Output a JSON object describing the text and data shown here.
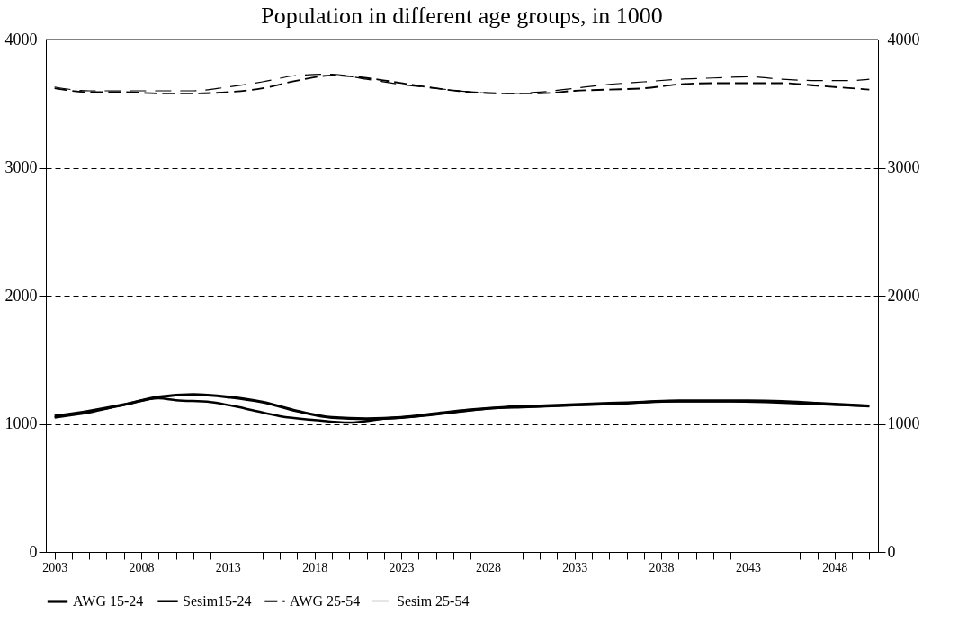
{
  "chart_data": {
    "type": "line",
    "title": "Population in different age groups, in 1000",
    "xlim": [
      2002.5,
      2050.5
    ],
    "xticks": [
      2003,
      {
        "value": 2004,
        "label": null
      },
      {
        "value": 2005,
        "label": null
      },
      {
        "value": 2006,
        "label": null
      },
      {
        "value": 2007,
        "label": null
      },
      2008,
      {
        "value": 2009,
        "label": null
      },
      {
        "value": 2010,
        "label": null
      },
      {
        "value": 2011,
        "label": null
      },
      {
        "value": 2012,
        "label": null
      },
      2013,
      {
        "value": 2014,
        "label": null
      },
      {
        "value": 2015,
        "label": null
      },
      {
        "value": 2016,
        "label": null
      },
      {
        "value": 2017,
        "label": null
      },
      2018,
      {
        "value": 2019,
        "label": null
      },
      {
        "value": 2020,
        "label": null
      },
      {
        "value": 2021,
        "label": null
      },
      {
        "value": 2022,
        "label": null
      },
      2023,
      {
        "value": 2024,
        "label": null
      },
      {
        "value": 2025,
        "label": null
      },
      {
        "value": 2026,
        "label": null
      },
      {
        "value": 2027,
        "label": null
      },
      2028,
      {
        "value": 2029,
        "label": null
      },
      {
        "value": 2030,
        "label": null
      },
      {
        "value": 2031,
        "label": null
      },
      {
        "value": 2032,
        "label": null
      },
      2033,
      {
        "value": 2034,
        "label": null
      },
      {
        "value": 2035,
        "label": null
      },
      {
        "value": 2036,
        "label": null
      },
      {
        "value": 2037,
        "label": null
      },
      2038,
      {
        "value": 2039,
        "label": null
      },
      {
        "value": 2040,
        "label": null
      },
      {
        "value": 2041,
        "label": null
      },
      {
        "value": 2042,
        "label": null
      },
      2043,
      {
        "value": 2044,
        "label": null
      },
      {
        "value": 2045,
        "label": null
      },
      {
        "value": 2046,
        "label": null
      },
      {
        "value": 2047,
        "label": null
      },
      2048,
      {
        "value": 2049,
        "label": null
      },
      {
        "value": 2050,
        "label": null
      }
    ],
    "ylim": [
      0,
      4000
    ],
    "yticks": [
      0,
      1000,
      2000,
      3000,
      4000
    ],
    "y2lim": [
      0,
      4000
    ],
    "y2ticks": [
      0,
      1000,
      2000,
      3000,
      4000
    ],
    "grid": "y",
    "legend": "bottom",
    "marker": "none",
    "series": [
      {
        "name": "AWG 15-24",
        "color": "#000000",
        "line_style": "solid",
        "x": [
          2003,
          2005,
          2007,
          2009,
          2011,
          2013,
          2015,
          2017,
          2019,
          2021,
          2023,
          2025,
          2027,
          2029,
          2031,
          2033,
          2035,
          2037,
          2039,
          2041,
          2043,
          2045,
          2047,
          2050
        ],
        "values": [
          1060,
          1100,
          1150,
          1210,
          1230,
          1210,
          1170,
          1100,
          1050,
          1040,
          1050,
          1080,
          1110,
          1130,
          1140,
          1150,
          1160,
          1170,
          1180,
          1180,
          1180,
          1175,
          1160,
          1140
        ]
      },
      {
        "name": "Sesim15-24",
        "color": "#000000",
        "line_style": "solid",
        "x": [
          2003,
          2005,
          2007,
          2009,
          2010,
          2012,
          2014,
          2016,
          2018,
          2020,
          2022,
          2024,
          2026,
          2028,
          2030,
          2032,
          2034,
          2036,
          2038,
          2040,
          2042,
          2044,
          2046,
          2048,
          2050
        ],
        "values": [
          1050,
          1090,
          1150,
          1200,
          1185,
          1170,
          1120,
          1060,
          1030,
          1010,
          1040,
          1060,
          1090,
          1120,
          1130,
          1140,
          1150,
          1160,
          1175,
          1175,
          1175,
          1170,
          1160,
          1150,
          1140
        ]
      },
      {
        "name": "AWG 25-54",
        "color": "#000000",
        "line_style": "dashed",
        "x": [
          2003,
          2005,
          2007,
          2009,
          2011,
          2013,
          2015,
          2017,
          2019,
          2021,
          2023,
          2025,
          2027,
          2029,
          2031,
          2033,
          2035,
          2037,
          2039,
          2041,
          2043,
          2045,
          2047,
          2050
        ],
        "values": [
          3620,
          3590,
          3590,
          3580,
          3580,
          3590,
          3620,
          3680,
          3720,
          3700,
          3660,
          3620,
          3590,
          3580,
          3580,
          3600,
          3610,
          3620,
          3650,
          3660,
          3660,
          3660,
          3640,
          3610
        ]
      },
      {
        "name": "Sesim 25-54",
        "color": "#000000",
        "line_style": "dashed",
        "x": [
          2003,
          2005,
          2007,
          2009,
          2011,
          2013,
          2015,
          2017,
          2019,
          2021,
          2023,
          2025,
          2027,
          2029,
          2031,
          2033,
          2035,
          2037,
          2039,
          2041,
          2043,
          2045,
          2047,
          2049,
          2050
        ],
        "values": [
          3630,
          3600,
          3600,
          3600,
          3600,
          3630,
          3670,
          3720,
          3730,
          3690,
          3650,
          3620,
          3590,
          3580,
          3590,
          3620,
          3650,
          3670,
          3690,
          3700,
          3710,
          3690,
          3680,
          3680,
          3690
        ]
      }
    ]
  }
}
